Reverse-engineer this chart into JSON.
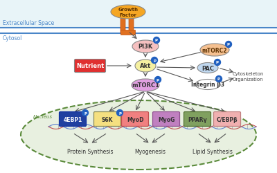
{
  "bg_color": "#f5f5f5",
  "extracellular_color": "#e8f4f8",
  "cytosol_color": "#ffffff",
  "nucleus_color": "#e8f0e0",
  "membrane_line_color": "#4a86c8",
  "extracellular_label": "Extracellular Space",
  "cytosol_label": "Cytosol",
  "nucleus_label": "Nucleus",
  "growth_factor_label": "Growth\nFactor",
  "growth_factor_color": "#f5a623",
  "pi3k_label": "PI3K",
  "pi3k_color": "#f5c0c0",
  "akt_label": "Akt",
  "akt_color": "#f5f0a0",
  "nutrient_label": "Nutrient",
  "nutrient_color": "#e03030",
  "mtorc1_label": "mTORC1",
  "mtorc1_color": "#e0a0e0",
  "mtorc2_label": "mTORC2",
  "mtorc2_color": "#f5c090",
  "pac_label": "PAC",
  "pac_color": "#c0d8f0",
  "integrin_label": "Integrin β3",
  "integrin_color": "#ffffff",
  "cytoskeleton_label": "Cytoskeleton\nOrganization",
  "nodes_nucleus": [
    {
      "label": "4EBP1",
      "color": "#2040a0",
      "text_color": "#ffffff",
      "edge_color": "#1030a0",
      "has_p": true
    },
    {
      "label": "S6K",
      "color": "#f5e080",
      "text_color": "#333333",
      "edge_color": "#888855",
      "has_p": true
    },
    {
      "label": "MyoD",
      "color": "#f08080",
      "text_color": "#333333",
      "edge_color": "#c05050",
      "has_p": false
    },
    {
      "label": "MyoG",
      "color": "#c080c0",
      "text_color": "#333333",
      "edge_color": "#905090",
      "has_p": false
    },
    {
      "label": "PPARγ",
      "color": "#80a060",
      "text_color": "#333333",
      "edge_color": "#507030",
      "has_p": false
    },
    {
      "label": "C/EBPβ",
      "color": "#f0b0b0",
      "text_color": "#333333",
      "edge_color": "#c08080",
      "has_p": false
    }
  ],
  "protein_synthesis_label": "Protein Synthesis",
  "myogenesis_label": "Myogenesis",
  "lipid_synthesis_label": "Lipid Synthesis",
  "arrow_color": "#555555",
  "p_circle_color": "#2060c0",
  "p_text_color": "#ffffff",
  "nucleus_nodes_x": [
    105,
    155,
    195,
    240,
    285,
    328
  ],
  "nucleus_nodes_y": [
    78,
    78,
    78,
    78,
    78,
    78
  ]
}
